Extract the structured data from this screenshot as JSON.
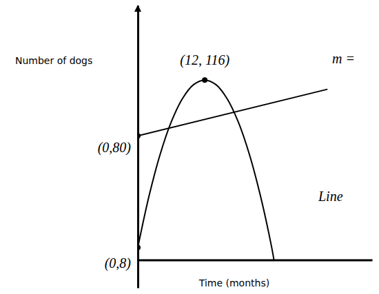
{
  "chart_data": {
    "type": "line",
    "x_label": "Time (months)",
    "y_label": "Number of dogs",
    "xlim": [
      0,
      42
    ],
    "ylim": [
      -18,
      164
    ],
    "tick_labels": false,
    "series": [
      {
        "x": [
          0,
          2,
          4,
          6,
          8,
          10,
          12,
          14,
          16,
          18,
          20,
          22,
          24,
          24.4
        ],
        "values": [
          8,
          41,
          68,
          89,
          104,
          113,
          116,
          113,
          104,
          89,
          68,
          41,
          8,
          0
        ],
        "color": "#000000"
      },
      {
        "x": [
          0,
          34
        ],
        "values": [
          80,
          110
        ],
        "color": "#000000"
      }
    ],
    "points": {
      "x": [
        12,
        0,
        0
      ],
      "y": [
        116,
        80,
        8
      ],
      "labels": [
        "(12, 116)",
        "(0,80)",
        "(0,8)"
      ]
    },
    "annotations": [
      "m =",
      "Line"
    ]
  }
}
